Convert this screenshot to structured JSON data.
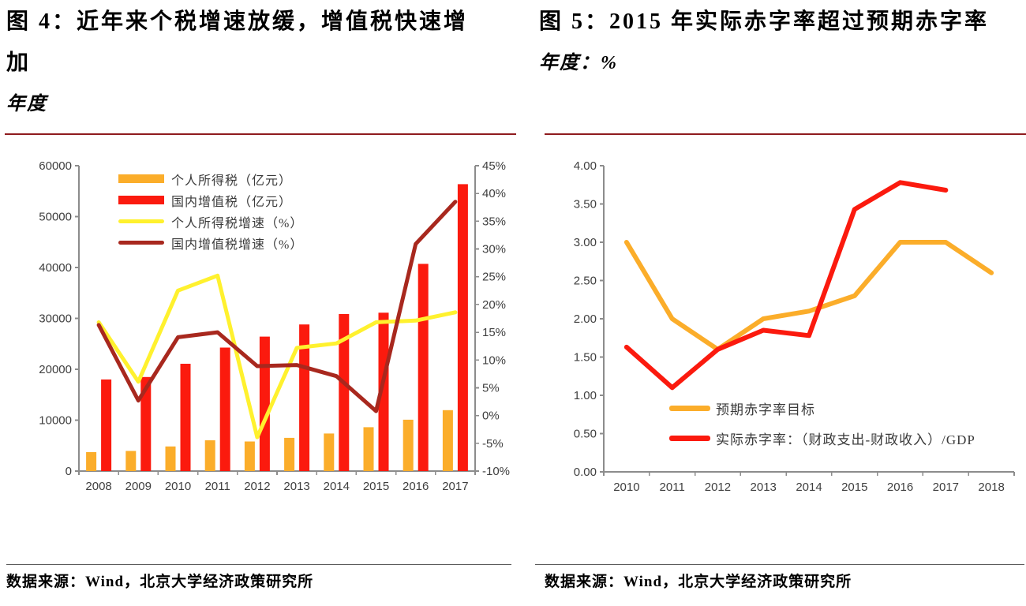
{
  "styles": {
    "accent_rule_color": "#8E1B1E",
    "source_rule_color": "#595959",
    "axis_color": "#8C8C8C",
    "tick_text_color": "#3F3F3F"
  },
  "chart_data": [
    {
      "type": "bar",
      "combo_with_lines": true,
      "title": "图 4：近年来个税增速放缓，增值税快速增加",
      "subtitle": "年度",
      "source": "数据来源：Wind，北京大学经济政策研究所",
      "categories": [
        "2008",
        "2009",
        "2010",
        "2011",
        "2012",
        "2013",
        "2014",
        "2015",
        "2016",
        "2017"
      ],
      "left_axis": {
        "min": 0,
        "max": 60000,
        "step": 10000
      },
      "right_axis": {
        "min": -10,
        "max": 45,
        "step": 5,
        "suffix": "%"
      },
      "grid": false,
      "legend_position": "inside-top-left",
      "bar_series": [
        {
          "name": "个人所得税（亿元）",
          "color": "#FBAD2A",
          "axis": "left",
          "values": [
            3722,
            3949,
            4837,
            6054,
            5820,
            6531,
            7377,
            8618,
            10089,
            11966
          ]
        },
        {
          "name": "国内增值税（亿元）",
          "color": "#FB1A0E",
          "axis": "left",
          "values": [
            17997,
            18481,
            21093,
            24267,
            26416,
            28810,
            30850,
            31109,
            40712,
            56378
          ]
        }
      ],
      "line_series": [
        {
          "name": "个人所得税增速（%）",
          "color": "#FFF12E",
          "axis": "right",
          "values": [
            16.8,
            6.1,
            22.5,
            25.2,
            -3.9,
            12.2,
            13.0,
            16.8,
            17.1,
            18.6
          ]
        },
        {
          "name": "国内增值税增速（%）",
          "color": "#A8281E",
          "axis": "right",
          "values": [
            16.3,
            2.7,
            14.1,
            15.0,
            8.9,
            9.1,
            7.1,
            0.8,
            30.9,
            38.5
          ]
        }
      ]
    },
    {
      "type": "line",
      "title": "图 5：2015 年实际赤字率超过预期赤字率",
      "subtitle": "年度：%",
      "source": "数据来源：Wind，北京大学经济政策研究所",
      "categories": [
        "2010",
        "2011",
        "2012",
        "2013",
        "2014",
        "2015",
        "2016",
        "2017",
        "2018"
      ],
      "y_axis": {
        "min": 0,
        "max": 4,
        "step": 0.5,
        "decimals": 2
      },
      "grid": false,
      "legend_position": "inside-bottom-center",
      "series": [
        {
          "name": "预期赤字率目标",
          "color": "#FBAD2A",
          "values": [
            3.0,
            2.0,
            1.6,
            2.0,
            2.1,
            2.3,
            3.0,
            3.0,
            2.6
          ]
        },
        {
          "name": "实际赤字率：（财政支出-财政收入）/GDP",
          "color": "#FB1A0E",
          "values": [
            1.63,
            1.1,
            1.6,
            1.85,
            1.78,
            3.43,
            3.78,
            3.68,
            null
          ]
        }
      ]
    }
  ]
}
